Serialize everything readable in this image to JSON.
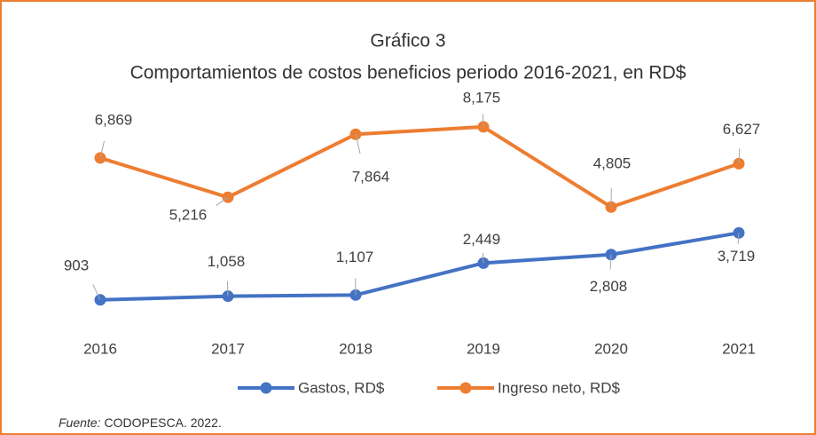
{
  "chart_data": {
    "type": "line",
    "title": "Gráfico 3",
    "subtitle": "Comportamientos de costos beneficios  periodo 2016-2021, en RD$",
    "categories": [
      "2016",
      "2017",
      "2018",
      "2019",
      "2020",
      "2021"
    ],
    "series": [
      {
        "name": "Gastos, RD$",
        "color": "#4472c4",
        "values": [
          903,
          1058,
          1107,
          2449,
          2808,
          3719
        ],
        "value_labels": [
          "903",
          "1,058",
          "1,107",
          "2,449",
          "2,808",
          "3,719"
        ]
      },
      {
        "name": "Ingreso neto, RD$",
        "color": "#ed7d31",
        "values": [
          6869,
          5216,
          7864,
          8175,
          4805,
          6627
        ],
        "value_labels": [
          "6,869",
          "5,216",
          "7,864",
          "8,175",
          "4,805",
          "6,627"
        ]
      }
    ],
    "ylim": [
      0,
      10000
    ],
    "legend": "bottom",
    "source": {
      "label": "Fuente:",
      "text": "CODOPESCA. 2022."
    }
  }
}
